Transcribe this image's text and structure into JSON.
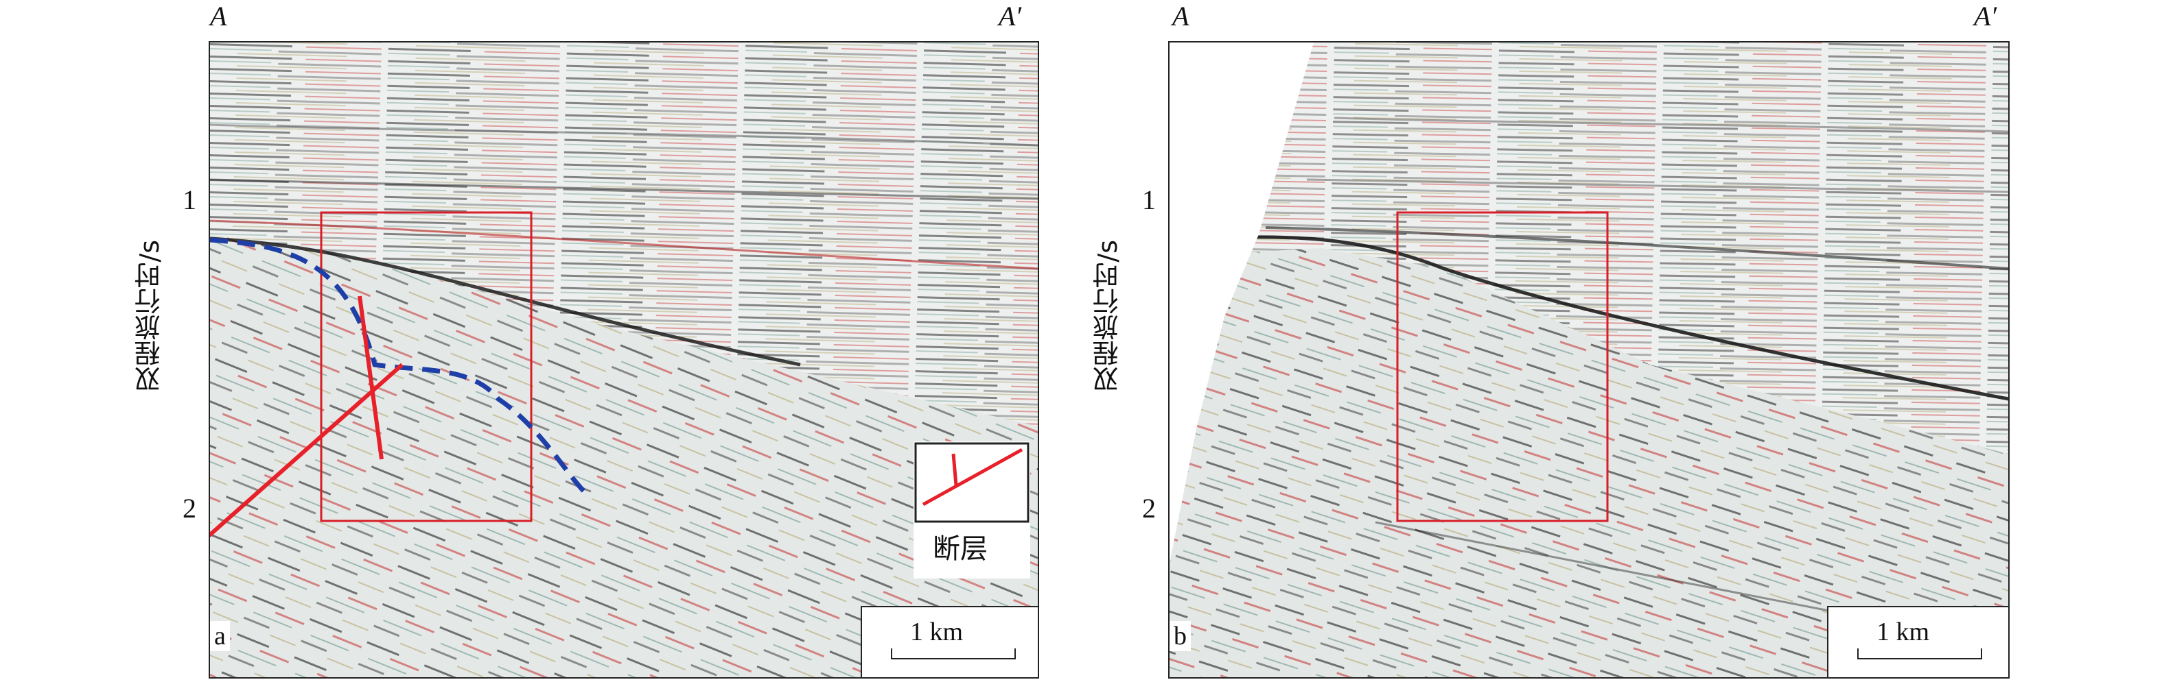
{
  "figure": {
    "ylabel": "双程旅行时/s",
    "y_ticks": [
      "1",
      "2"
    ],
    "panels": [
      {
        "letter": "a",
        "left_label": "A",
        "right_label": "A′",
        "scale_label": "1 km",
        "legend_label": "断层",
        "colors": {
          "fault": "#e8202a",
          "horizon": "#1f3fa8",
          "box": "#d81e28"
        }
      },
      {
        "letter": "b",
        "left_label": "A",
        "right_label": "A′",
        "scale_label": "1 km",
        "colors": {
          "box": "#d81e28"
        }
      }
    ]
  }
}
